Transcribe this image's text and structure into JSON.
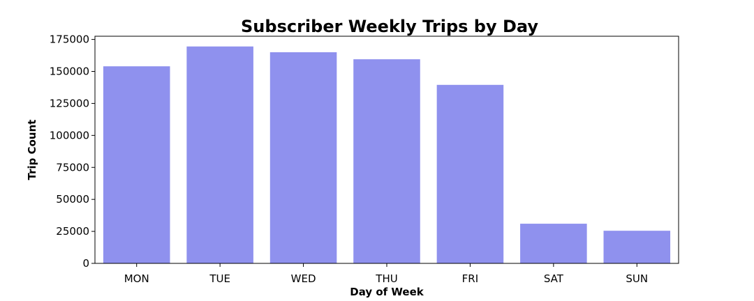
{
  "chart_data": {
    "type": "bar",
    "title": "Subscriber Weekly Trips by Day",
    "xlabel": "Day of Week",
    "ylabel": "Trip Count",
    "categories": [
      "MON",
      "TUE",
      "WED",
      "THU",
      "FRI",
      "SAT",
      "SUN"
    ],
    "values": [
      154000,
      169500,
      165000,
      159500,
      139500,
      31000,
      25500
    ],
    "ylim": [
      0,
      177500
    ],
    "yticks": [
      0,
      25000,
      50000,
      75000,
      100000,
      125000,
      150000,
      175000
    ],
    "ytick_labels": [
      "0",
      "25000",
      "50000",
      "75000",
      "100000",
      "125000",
      "150000",
      "175000"
    ],
    "grid": false,
    "legend": "none",
    "bar_color": "#8f91ee"
  }
}
